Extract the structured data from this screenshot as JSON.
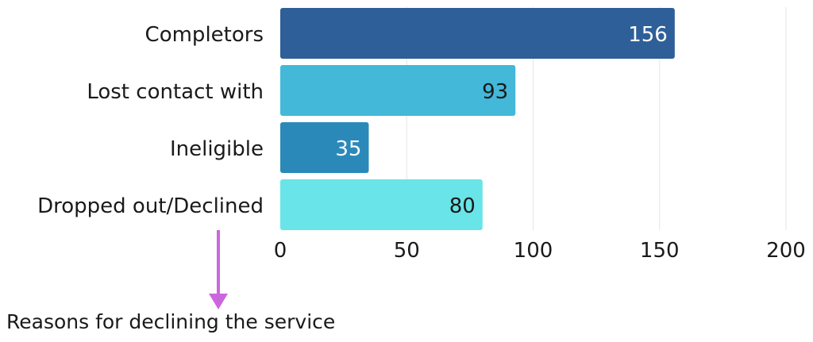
{
  "chart_data": {
    "type": "bar",
    "orientation": "horizontal",
    "categories": [
      "Completors",
      "Lost contact with",
      "Ineligible",
      "Dropped out/Declined"
    ],
    "values": [
      156,
      93,
      35,
      80
    ],
    "xlim": [
      0,
      200
    ],
    "ticks": [
      0,
      50,
      100,
      150,
      200
    ],
    "grid": true,
    "colors": [
      "#2e5f98",
      "#43b8d8",
      "#2b89ba",
      "#69e4e8"
    ],
    "label_colors": [
      "#ffffff",
      "#1a1a1a",
      "#ffffff",
      "#1a1a1a"
    ]
  },
  "annotation": {
    "text": "Reasons for declining the service",
    "arrow_color": "#cc66dd"
  }
}
